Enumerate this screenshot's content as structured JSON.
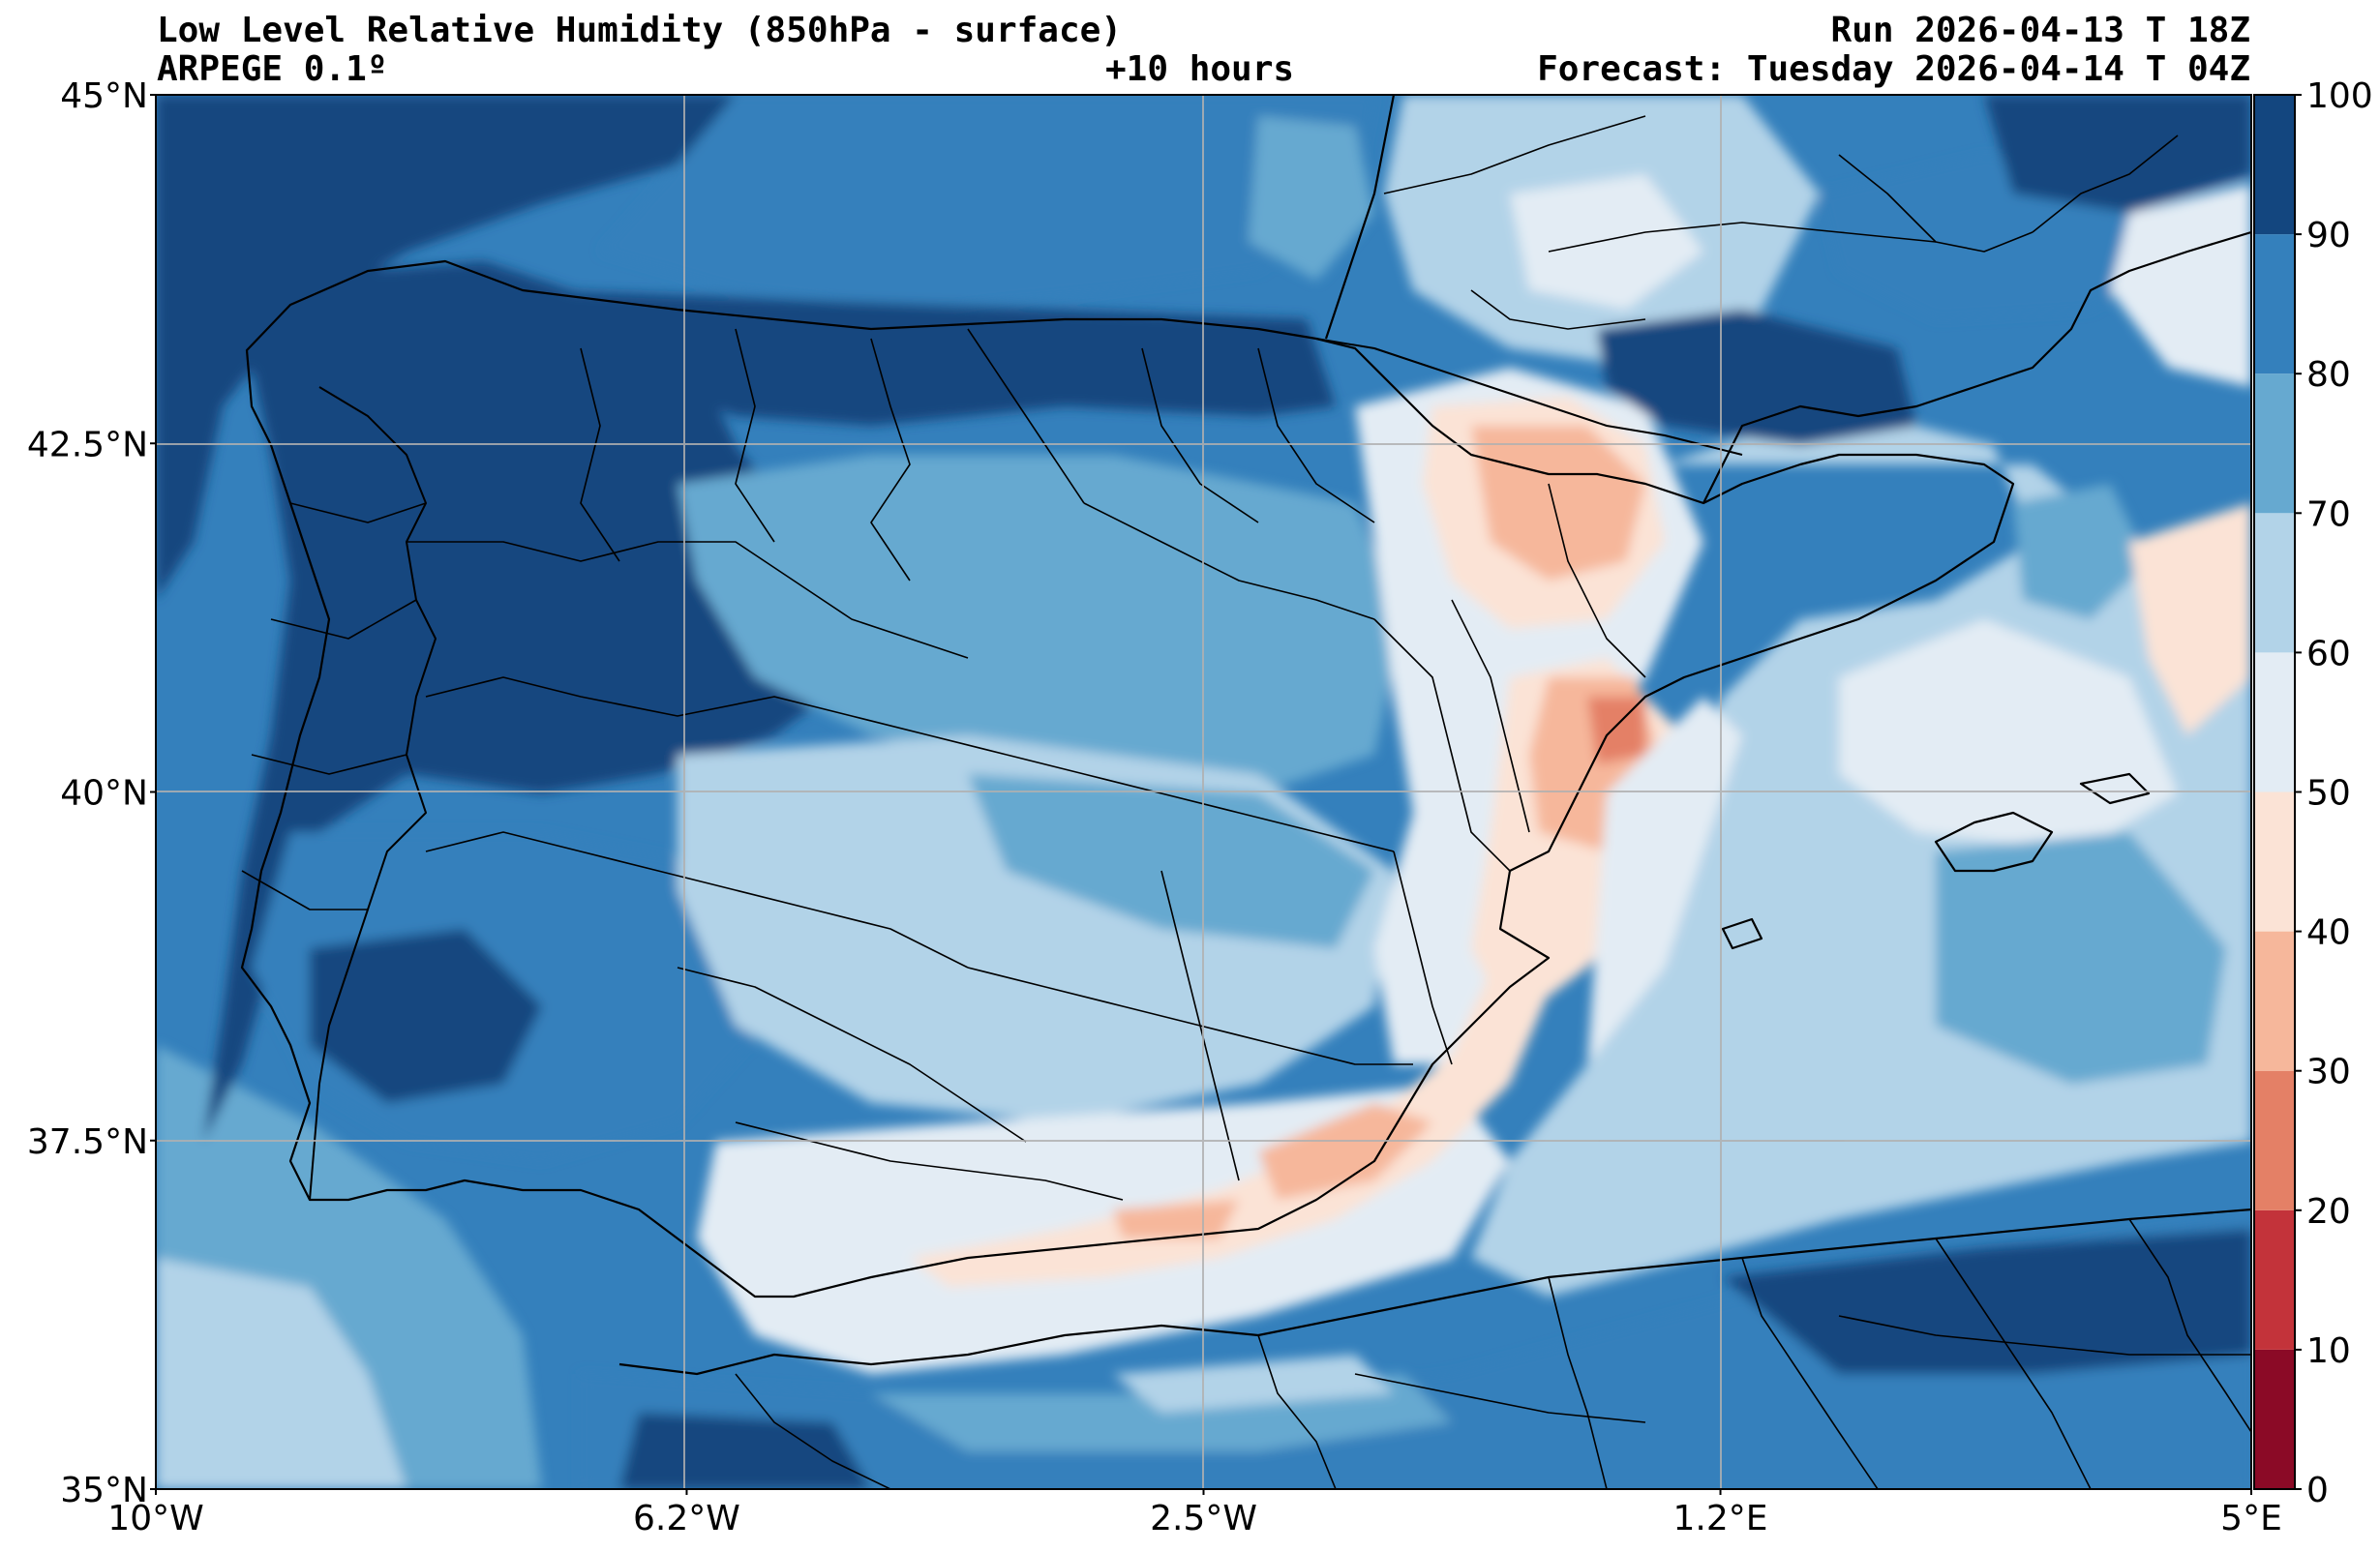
{
  "title": {
    "main": "Low Level Relative Humidity (850hPa - surface)",
    "model": "ARPEGE 0.1º",
    "lead": "+10 hours",
    "run": "Run 2026-04-13 T 18Z",
    "forecast": "Forecast: Tuesday 2026-04-14 T 04Z"
  },
  "map": {
    "lon_range": [
      -10,
      5
    ],
    "lat_range": [
      35,
      45
    ],
    "x_ticks": [
      {
        "value": -10,
        "label": "10°W"
      },
      {
        "value": -6.2,
        "label": "6.2°W"
      },
      {
        "value": -2.5,
        "label": "2.5°W"
      },
      {
        "value": 1.2,
        "label": "1.2°E"
      },
      {
        "value": 5,
        "label": "5°E"
      }
    ],
    "y_ticks": [
      {
        "value": 45,
        "label": "45°N"
      },
      {
        "value": 42.5,
        "label": "42.5°N"
      },
      {
        "value": 40,
        "label": "40°N"
      },
      {
        "value": 37.5,
        "label": "37.5°N"
      },
      {
        "value": 35,
        "label": "35°N"
      }
    ]
  },
  "colorbar": {
    "levels": [
      {
        "value": 0,
        "label": "0"
      },
      {
        "value": 10,
        "label": "10"
      },
      {
        "value": 20,
        "label": "20"
      },
      {
        "value": 30,
        "label": "30"
      },
      {
        "value": 40,
        "label": "40"
      },
      {
        "value": 50,
        "label": "50"
      },
      {
        "value": 60,
        "label": "60"
      },
      {
        "value": 70,
        "label": "70"
      },
      {
        "value": 80,
        "label": "80"
      },
      {
        "value": 90,
        "label": "90"
      },
      {
        "value": 100,
        "label": "100"
      }
    ],
    "colors": [
      "#8b0a26",
      "#c3333a",
      "#e48066",
      "#f6b79b",
      "#fbe3d6",
      "#e3ecf4",
      "#b2d3e8",
      "#66a9d0",
      "#3480bc",
      "#13467f"
    ]
  }
}
